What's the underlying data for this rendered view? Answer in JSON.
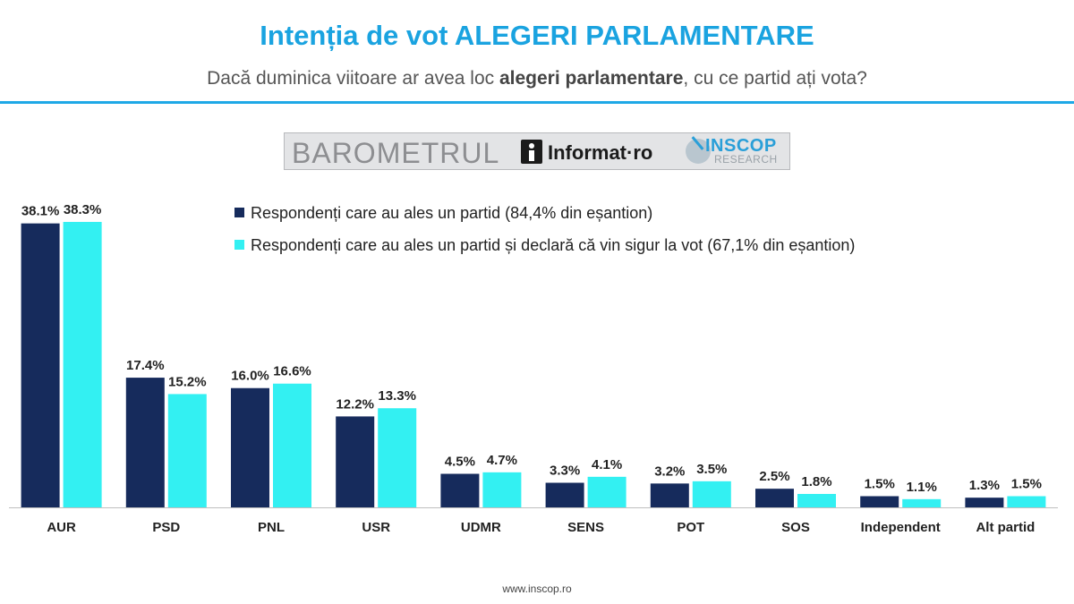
{
  "header": {
    "title": "Intenția de vot ALEGERI PARLAMENTARE",
    "subtitle_pre": "Dacă duminica viitoare ar avea loc ",
    "subtitle_bold": "alegeri parlamentare",
    "subtitle_post": ", cu ce partid ați vota?"
  },
  "banner": {
    "barometrul": "BAROMETRUL",
    "informat": "Informat·ro",
    "inscop": "INSCOP",
    "research": "RESEARCH"
  },
  "footer": {
    "url": "www.inscop.ro"
  },
  "colors": {
    "series1": "#162b5c",
    "series2": "#33f0f2",
    "accent": "#1aa3e0"
  },
  "chart_data": {
    "type": "bar",
    "categories": [
      "AUR",
      "PSD",
      "PNL",
      "USR",
      "UDMR",
      "SENS",
      "POT",
      "SOS",
      "Independent",
      "Alt partid"
    ],
    "series": [
      {
        "name": "Respondenți care au ales un partid (84,4% din eșantion)",
        "color": "#162b5c",
        "values": [
          38.1,
          17.4,
          16.0,
          12.2,
          4.5,
          3.3,
          3.2,
          2.5,
          1.5,
          1.3
        ],
        "labels": [
          "38.1%",
          "17.4%",
          "16.0%",
          "12.2%",
          "4.5%",
          "3.3%",
          "3.2%",
          "2.5%",
          "1.5%",
          "1.3%"
        ]
      },
      {
        "name": "Respondenți care au ales un partid și declară că vin sigur la vot (67,1% din eșantion)",
        "color": "#33f0f2",
        "values": [
          38.3,
          15.2,
          16.6,
          13.3,
          4.7,
          4.1,
          3.5,
          1.8,
          1.1,
          1.5
        ],
        "labels": [
          "38.3%",
          "15.2%",
          "16.6%",
          "13.3%",
          "4.7%",
          "4.1%",
          "3.5%",
          "1.8%",
          "1.1%",
          "1.5%"
        ]
      }
    ],
    "ylim": [
      0,
      40
    ],
    "legend_position": "top-right",
    "grid": false
  }
}
